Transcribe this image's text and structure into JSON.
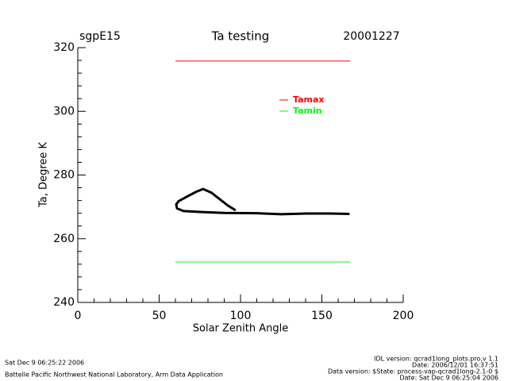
{
  "chart_data": {
    "type": "line",
    "title": "Ta testing",
    "left_label": "sgpE15",
    "right_label": "20001227",
    "xlabel": "Solar Zenith Angle",
    "ylabel": "Ta, Degree K",
    "xlim": [
      0,
      200
    ],
    "xticks": [
      0,
      50,
      100,
      150,
      200
    ],
    "ylim": [
      240,
      320
    ],
    "yticks": [
      240,
      260,
      280,
      300,
      320
    ],
    "legend": "upper right",
    "series": [
      {
        "name": "Tamax",
        "color": "#ff0000",
        "x": [
          60,
          167.3
        ],
        "values": [
          315.8,
          315.8
        ]
      },
      {
        "name": "Tamin",
        "color": "#00ff00",
        "x": [
          60,
          167.3
        ],
        "values": [
          252.7,
          252.7
        ]
      },
      {
        "color": "#000000",
        "x": [
          97,
          92,
          87,
          82,
          77,
          73,
          67,
          62,
          60.5,
          61,
          65,
          75,
          90,
          110,
          125,
          140,
          155,
          167
        ],
        "values": [
          268.9,
          270.5,
          272.5,
          274.5,
          275.6,
          274.8,
          273.2,
          271.8,
          270.8,
          269.5,
          268.7,
          268.4,
          268.1,
          268,
          267.7,
          267.9,
          267.9,
          267.8
        ]
      }
    ]
  },
  "footer": {
    "left": [
      "Sat Dec  9 06:25:22 2006",
      "Battelle Pacific Northwest National Laboratory, Arm Data Application"
    ],
    "right": [
      "IDL version: qcrad1long_plots.pro,v 1.1",
      "Date: 2006/12/01 16:37:51",
      "Data version: $State: process-vap-qcrad1long-2.1-0 $",
      "Date: Sat Dec  9 06:25:04 2006"
    ]
  }
}
